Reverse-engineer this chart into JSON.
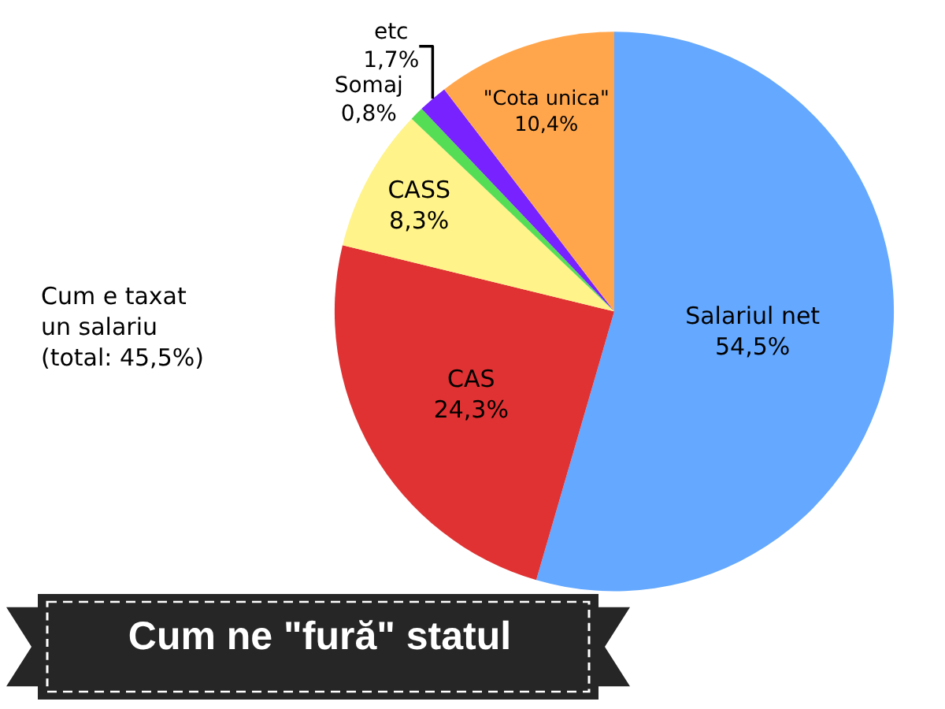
{
  "chart_data": {
    "type": "pie",
    "title": "Cum ne \"fură\" statul",
    "categories": [
      "Salariul net",
      "CAS",
      "CASS",
      "Somaj",
      "etc",
      "\"Cota unica\""
    ],
    "values": [
      54.5,
      24.3,
      8.3,
      0.8,
      1.7,
      10.4
    ],
    "value_labels": [
      "54,5%",
      "24,3%",
      "8,3%",
      "0,8%",
      "1,7%",
      "10,4%"
    ],
    "colors": [
      "#64a8ff",
      "#e03232",
      "#fff38a",
      "#55dd55",
      "#7722ff",
      "#ffa64d"
    ],
    "annotations": [
      "Cum e taxat\nun salariu\n(total: 45,5%)"
    ],
    "legend": false
  }
}
